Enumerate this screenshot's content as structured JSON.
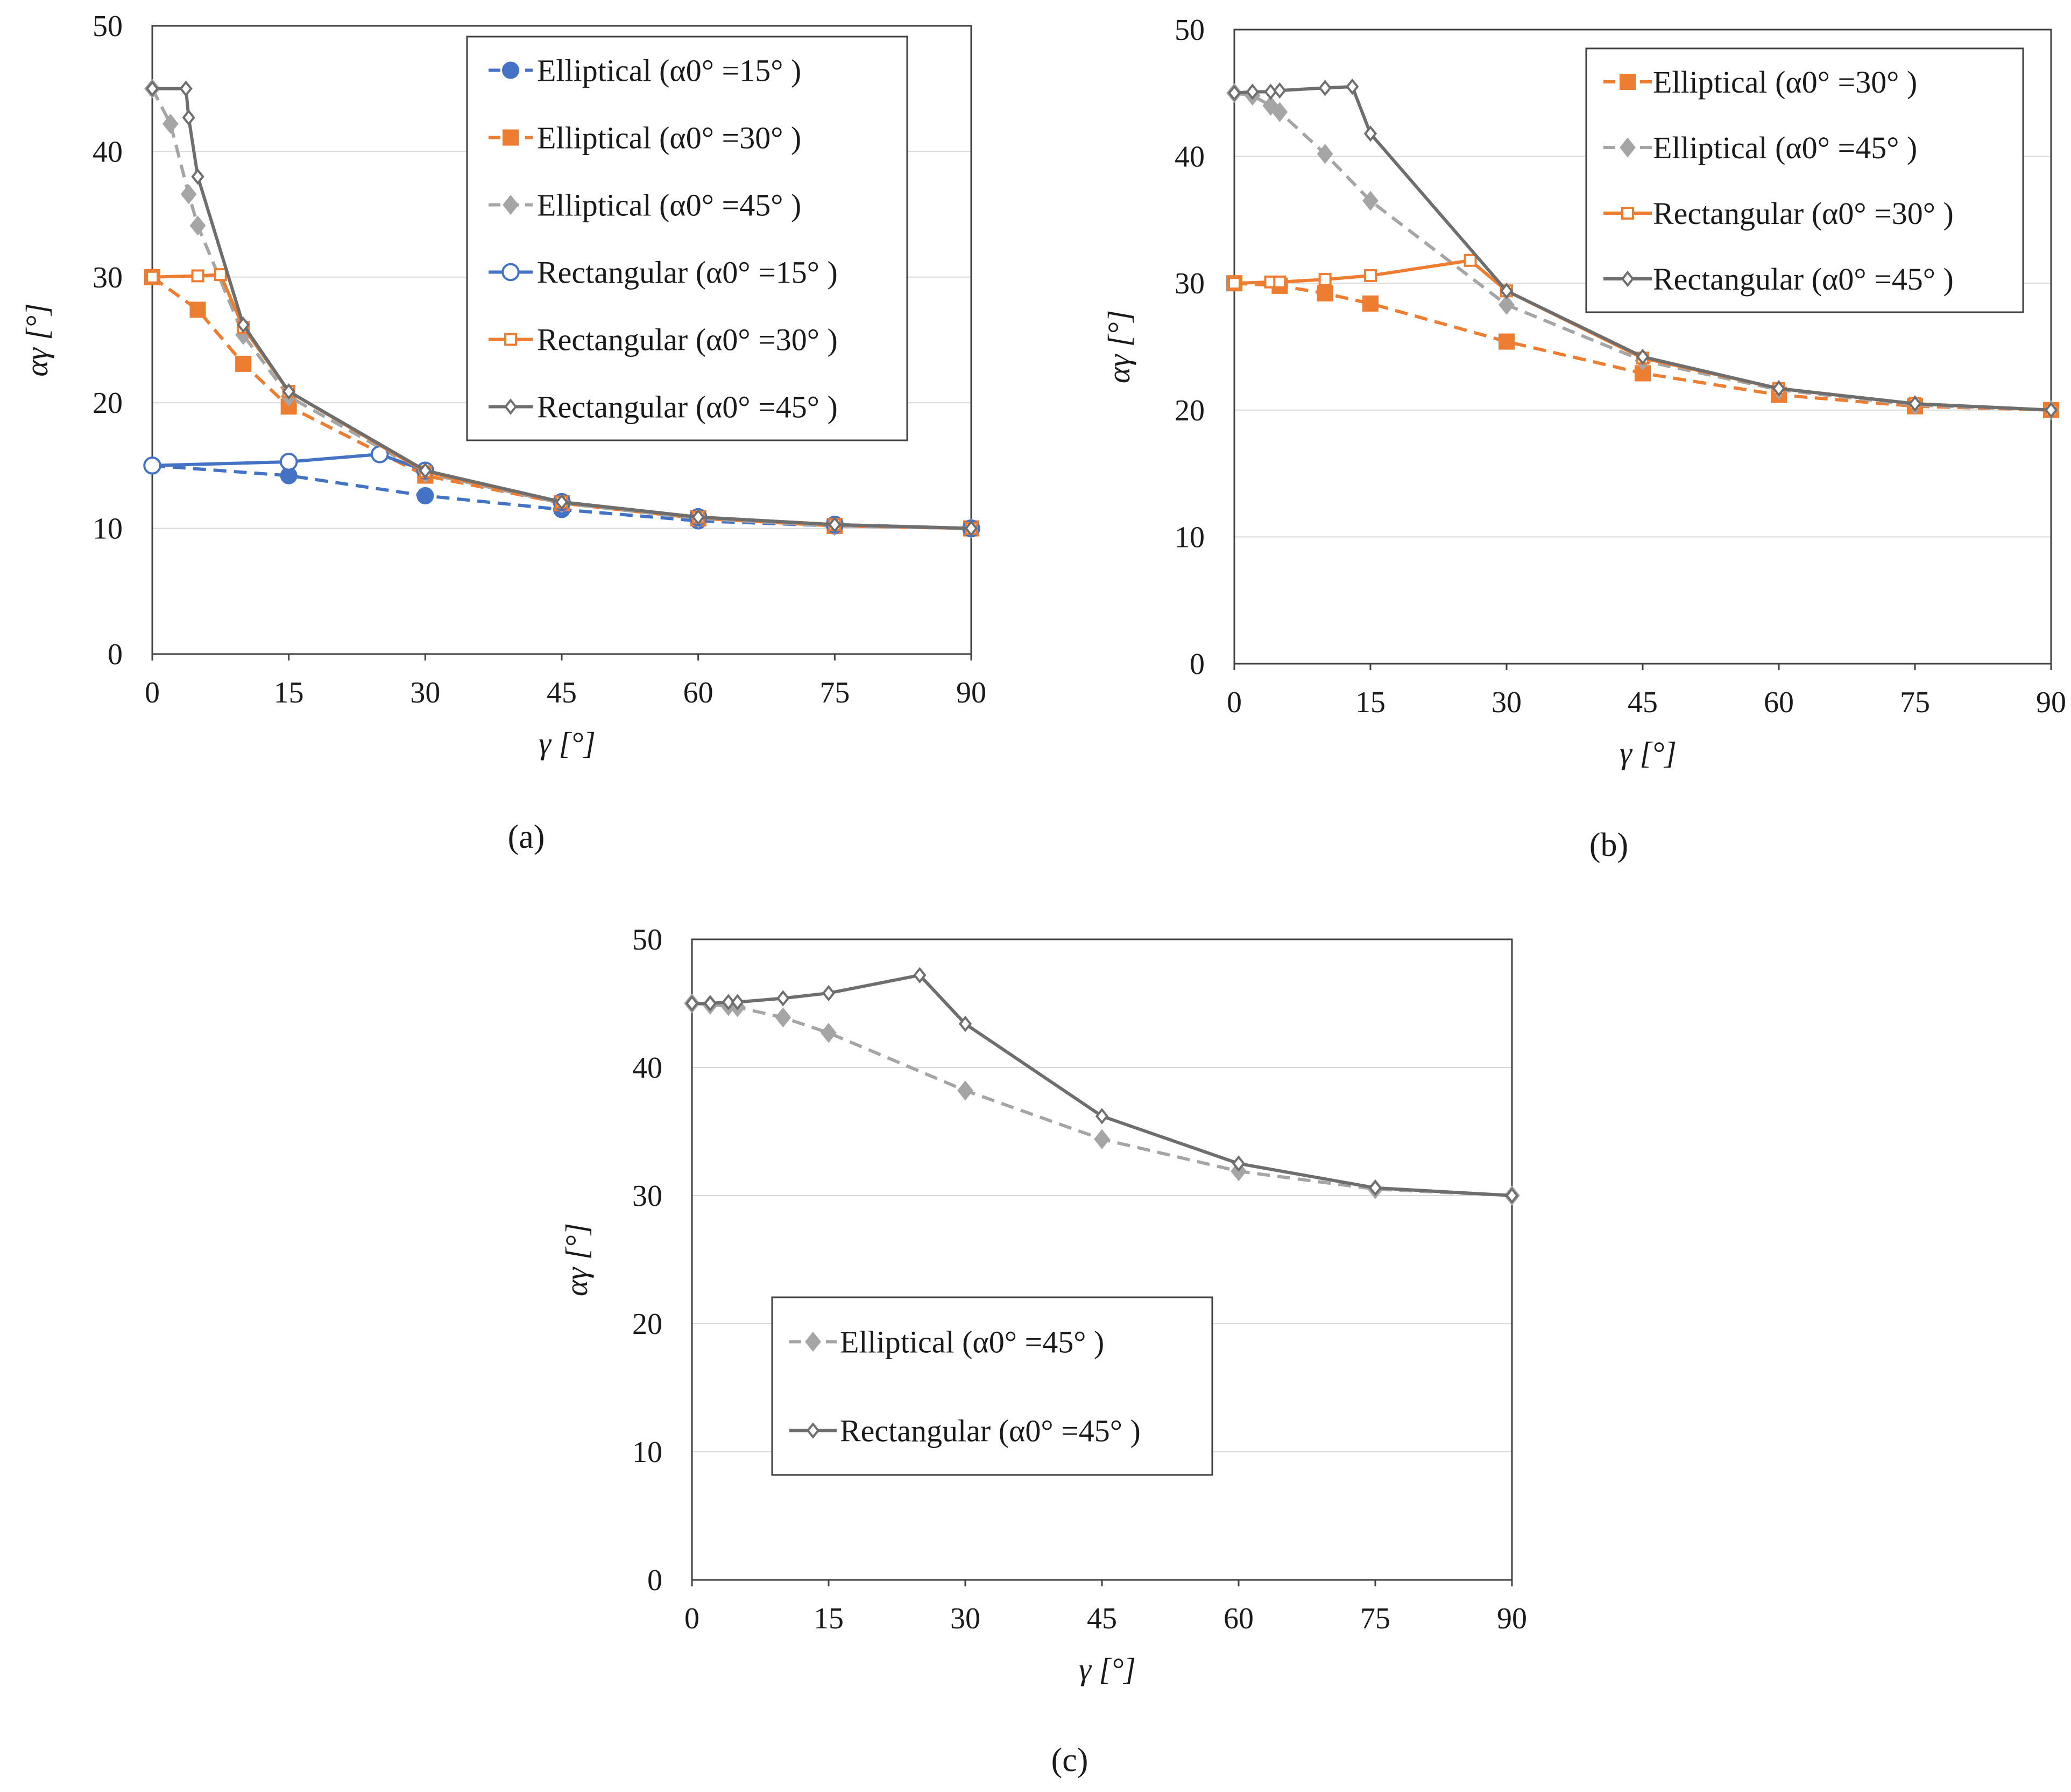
{
  "colors": {
    "blue": "#4472c4",
    "orange": "#ed7d31",
    "gray": "#a5a5a5",
    "darkgray": "#6e6e6e",
    "grid": "#d9d9d9",
    "frame": "#404040"
  },
  "chart_data": [
    {
      "id": "a",
      "type": "line",
      "caption": "(a)",
      "xlabel": "γ [°]",
      "ylabel": "αγ [°]",
      "xlim": [
        0,
        90
      ],
      "ylim": [
        0,
        50
      ],
      "xticks": [
        "0",
        "15",
        "30",
        "45",
        "60",
        "75",
        "90"
      ],
      "yticks": [
        "0",
        "10",
        "20",
        "30",
        "40",
        "50"
      ],
      "legend_position": "top-right",
      "series": [
        {
          "name": "Elliptical  (α0°  =15°  )",
          "style": "dashed",
          "marker": "circle-filled",
          "color": "#4472c4",
          "x": [
            0,
            15,
            30,
            45,
            60,
            75,
            90
          ],
          "y": [
            15,
            14.2,
            12.6,
            11.5,
            10.6,
            10.2,
            10
          ]
        },
        {
          "name": "Elliptical  (α0°  =30°  )",
          "style": "dashed",
          "marker": "square-filled",
          "color": "#ed7d31",
          "x": [
            0,
            5,
            10,
            15,
            30,
            45,
            60,
            75,
            90
          ],
          "y": [
            30,
            27.4,
            23.1,
            19.7,
            14.2,
            12,
            10.8,
            10.2,
            10
          ]
        },
        {
          "name": "Elliptical  (α0°  =45°  )",
          "style": "dashed",
          "marker": "diamond-filled",
          "color": "#a5a5a5",
          "x": [
            0,
            2,
            4,
            5,
            10,
            15,
            30,
            45,
            60,
            75,
            90
          ],
          "y": [
            45,
            42.2,
            36.6,
            34.1,
            25.4,
            20.5,
            14.4,
            12,
            10.8,
            10.2,
            10
          ]
        },
        {
          "name": "Rectangular (α0°  =15°  )",
          "style": "solid",
          "marker": "circle-open",
          "color": "#4472c4",
          "x": [
            0,
            15,
            25,
            30,
            45,
            60,
            75,
            90
          ],
          "y": [
            15,
            15.3,
            15.9,
            14.6,
            12.1,
            10.9,
            10.3,
            10
          ]
        },
        {
          "name": "Rectangular (α0°  =30°  )",
          "style": "solid",
          "marker": "square-open",
          "color": "#ed7d31",
          "x": [
            0,
            5,
            7.5,
            10,
            15,
            30,
            45,
            60,
            75,
            90
          ],
          "y": [
            30,
            30.1,
            30.2,
            26,
            20.9,
            14.5,
            12.1,
            10.9,
            10.3,
            10
          ]
        },
        {
          "name": "Rectangular (α0°  =45°  )",
          "style": "solid",
          "marker": "diamond-open",
          "color": "#6e6e6e",
          "x": [
            0,
            3.7,
            4,
            5,
            10,
            15,
            30,
            45,
            60,
            75,
            90
          ],
          "y": [
            45,
            45,
            42.7,
            38,
            26.2,
            20.9,
            14.6,
            12.1,
            10.9,
            10.3,
            10
          ]
        }
      ]
    },
    {
      "id": "b",
      "type": "line",
      "caption": "(b)",
      "xlabel": "γ [°]",
      "ylabel": "αγ [°]",
      "xlim": [
        0,
        90
      ],
      "ylim": [
        0,
        50
      ],
      "xticks": [
        "0",
        "15",
        "30",
        "45",
        "60",
        "75",
        "90"
      ],
      "yticks": [
        "0",
        "10",
        "20",
        "30",
        "40",
        "50"
      ],
      "legend_position": "top-right",
      "series": [
        {
          "name": "Elliptical  (α0°  =30°  )",
          "style": "dashed",
          "marker": "square-filled",
          "color": "#ed7d31",
          "x": [
            0,
            5,
            10,
            15,
            30,
            45,
            60,
            75,
            90
          ],
          "y": [
            30,
            29.8,
            29.2,
            28.4,
            25.4,
            22.9,
            21.2,
            20.3,
            20
          ]
        },
        {
          "name": "Elliptical  (α0°  =45°  )",
          "style": "dashed",
          "marker": "diamond-filled",
          "color": "#a5a5a5",
          "x": [
            0,
            2,
            4,
            5,
            10,
            15,
            30,
            45,
            60,
            75,
            90
          ],
          "y": [
            45,
            44.8,
            44,
            43.5,
            40.2,
            36.5,
            28.3,
            23.9,
            21.6,
            20.4,
            20
          ]
        },
        {
          "name": "Rectangular (α0°  =30°  )",
          "style": "solid",
          "marker": "square-open",
          "color": "#ed7d31",
          "x": [
            0,
            4,
            5,
            10,
            15,
            26,
            30,
            45,
            60,
            75,
            90
          ],
          "y": [
            30,
            30.1,
            30.1,
            30.3,
            30.6,
            31.8,
            29.4,
            24.1,
            21.7,
            20.5,
            20
          ]
        },
        {
          "name": "Rectangular (α0°  =45°  )",
          "style": "solid",
          "marker": "diamond-open",
          "color": "#6e6e6e",
          "x": [
            0,
            2,
            4,
            5,
            10,
            13,
            15,
            30,
            45,
            60,
            75,
            90
          ],
          "y": [
            45,
            45.1,
            45.1,
            45.2,
            45.4,
            45.5,
            41.8,
            29.4,
            24.2,
            21.7,
            20.5,
            20
          ]
        }
      ]
    },
    {
      "id": "c",
      "type": "line",
      "caption": "(c)",
      "xlabel": "γ [°]",
      "ylabel": "αγ [°]",
      "xlim": [
        0,
        90
      ],
      "ylim": [
        0,
        50
      ],
      "xticks": [
        "0",
        "15",
        "30",
        "45",
        "60",
        "75",
        "90"
      ],
      "yticks": [
        "0",
        "10",
        "20",
        "30",
        "40",
        "50"
      ],
      "legend_position": "lower-left",
      "series": [
        {
          "name": "Elliptical  (α0°  =45°  )",
          "style": "dashed",
          "marker": "diamond-filled",
          "color": "#a5a5a5",
          "x": [
            0,
            2,
            4,
            5,
            10,
            15,
            30,
            45,
            60,
            75,
            90
          ],
          "y": [
            45,
            44.9,
            44.8,
            44.7,
            43.9,
            42.7,
            38.2,
            34.4,
            31.9,
            30.5,
            30
          ]
        },
        {
          "name": "Rectangular (α0°  =45°  )",
          "style": "solid",
          "marker": "diamond-open",
          "color": "#6e6e6e",
          "x": [
            0,
            2,
            4,
            5,
            10,
            15,
            25,
            30,
            45,
            60,
            75,
            90
          ],
          "y": [
            45,
            45,
            45.1,
            45.1,
            45.4,
            45.8,
            47.2,
            43.4,
            36.2,
            32.5,
            30.6,
            30
          ]
        }
      ]
    }
  ]
}
